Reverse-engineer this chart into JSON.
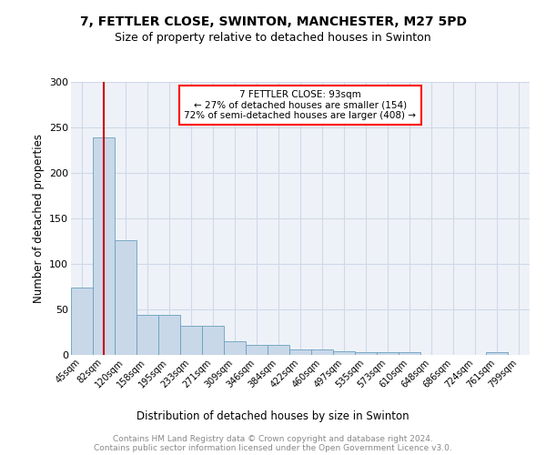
{
  "title1": "7, FETTLER CLOSE, SWINTON, MANCHESTER, M27 5PD",
  "title2": "Size of property relative to detached houses in Swinton",
  "xlabel": "Distribution of detached houses by size in Swinton",
  "ylabel": "Number of detached properties",
  "footer1": "Contains HM Land Registry data © Crown copyright and database right 2024.",
  "footer2": "Contains public sector information licensed under the Open Government Licence v3.0.",
  "annotation_title": "7 FETTLER CLOSE: 93sqm",
  "annotation_line2": "← 27% of detached houses are smaller (154)",
  "annotation_line3": "72% of semi-detached houses are larger (408) →",
  "bar_color": "#c8d8e8",
  "bar_edge_color": "#6a9fc0",
  "vline_color": "#cc0000",
  "vline_x": 1,
  "categories": [
    "45sqm",
    "82sqm",
    "120sqm",
    "158sqm",
    "195sqm",
    "233sqm",
    "271sqm",
    "309sqm",
    "346sqm",
    "384sqm",
    "422sqm",
    "460sqm",
    "497sqm",
    "535sqm",
    "573sqm",
    "610sqm",
    "648sqm",
    "686sqm",
    "724sqm",
    "761sqm",
    "799sqm"
  ],
  "values": [
    74,
    239,
    126,
    44,
    44,
    32,
    32,
    15,
    11,
    11,
    6,
    6,
    4,
    3,
    3,
    3,
    0,
    0,
    0,
    3,
    0
  ],
  "ylim": [
    0,
    300
  ],
  "yticks": [
    0,
    50,
    100,
    150,
    200,
    250,
    300
  ],
  "grid_color": "#d0d8e8",
  "bg_color": "#eef2f8"
}
